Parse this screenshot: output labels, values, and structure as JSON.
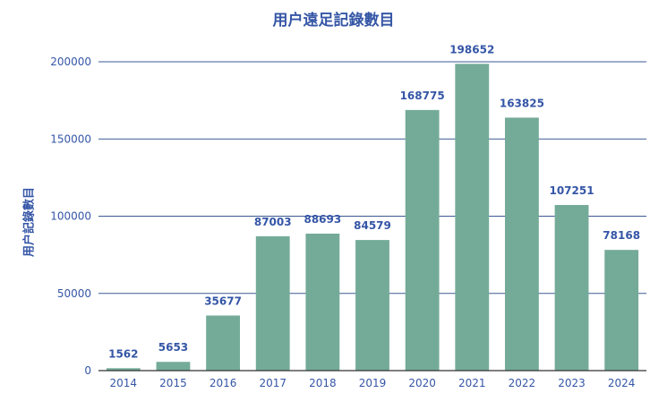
{
  "chart_data": {
    "type": "bar",
    "title": "用户遠足記錄數目",
    "xlabel": "",
    "ylabel": "用户記錄數目",
    "categories": [
      "2014",
      "2015",
      "2016",
      "2017",
      "2018",
      "2019",
      "2020",
      "2021",
      "2022",
      "2023",
      "2024"
    ],
    "values": [
      1562,
      5653,
      35677,
      87003,
      88693,
      84579,
      168775,
      198652,
      163825,
      107251,
      78168
    ],
    "ylim": [
      0,
      200000
    ],
    "yticks": [
      0,
      50000,
      100000,
      150000,
      200000
    ],
    "grid": true,
    "legend": "none",
    "data_labels": true,
    "colors": {
      "bar": "#74ab98",
      "text": "#3556a6",
      "grid": "#3b5a94",
      "axis": "#333333"
    }
  }
}
